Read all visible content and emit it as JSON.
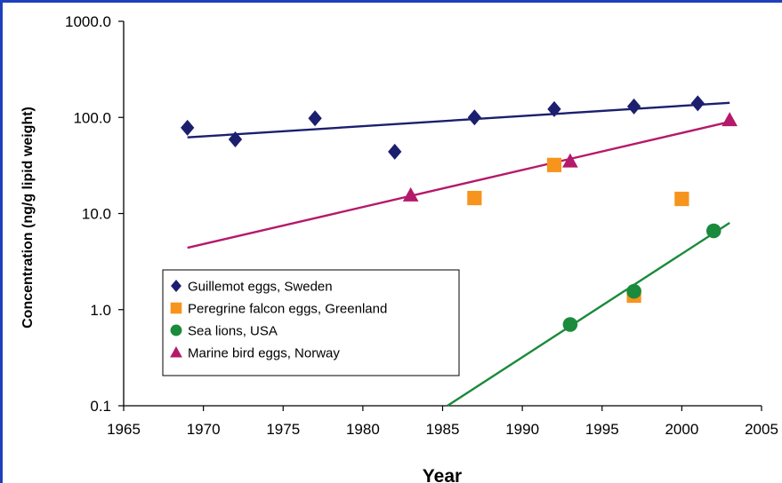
{
  "chart_data": {
    "type": "scatter",
    "xlabel": "Year",
    "ylabel": "Concentration (ng/g lipid weight)",
    "y_scale": "log",
    "xlim": [
      1965,
      2005
    ],
    "ylim": [
      0.1,
      1000
    ],
    "x_ticks": [
      "1965",
      "1970",
      "1975",
      "1980",
      "1985",
      "1990",
      "1995",
      "2000",
      "2005"
    ],
    "y_ticks": [
      "0.1",
      "1.0",
      "10.0",
      "100.0",
      "1000.0"
    ],
    "y_tick_values": [
      0.1,
      1,
      10,
      100,
      1000
    ],
    "x_tick_values": [
      1965,
      1970,
      1975,
      1980,
      1985,
      1990,
      1995,
      2000,
      2005
    ],
    "grid": false,
    "legend_position": "lower-left",
    "series": [
      {
        "name": "Guillemot eggs, Sweden",
        "marker": "diamond",
        "color": "#1b1f6e",
        "points": [
          [
            1969,
            78
          ],
          [
            1972,
            59
          ],
          [
            1977,
            98
          ],
          [
            1982,
            44
          ],
          [
            1987,
            100
          ],
          [
            1992,
            122
          ],
          [
            1997,
            130
          ],
          [
            2001,
            140
          ]
        ],
        "trendline": [
          [
            1969,
            62
          ],
          [
            2003,
            142
          ]
        ]
      },
      {
        "name": "Peregrine falcon eggs, Greenland",
        "marker": "square",
        "color": "#f7941d",
        "points": [
          [
            1987,
            14.5
          ],
          [
            1992,
            32
          ],
          [
            1997,
            1.4
          ],
          [
            2000,
            14.2
          ]
        ],
        "trendline": null
      },
      {
        "name": "Sea lions, USA",
        "marker": "circle",
        "color": "#1a8a3c",
        "points": [
          [
            1993,
            0.7
          ],
          [
            1997,
            1.55
          ],
          [
            2002,
            6.6
          ]
        ],
        "trendline": [
          [
            1985.3,
            0.1
          ],
          [
            2003,
            8.0
          ]
        ]
      },
      {
        "name": "Marine bird eggs, Norway",
        "marker": "triangle",
        "color": "#b5196a",
        "points": [
          [
            1983,
            15.5
          ],
          [
            1993,
            35
          ],
          [
            2003,
            94
          ]
        ],
        "trendline": [
          [
            1969,
            4.4
          ],
          [
            2003,
            90
          ]
        ]
      }
    ]
  }
}
